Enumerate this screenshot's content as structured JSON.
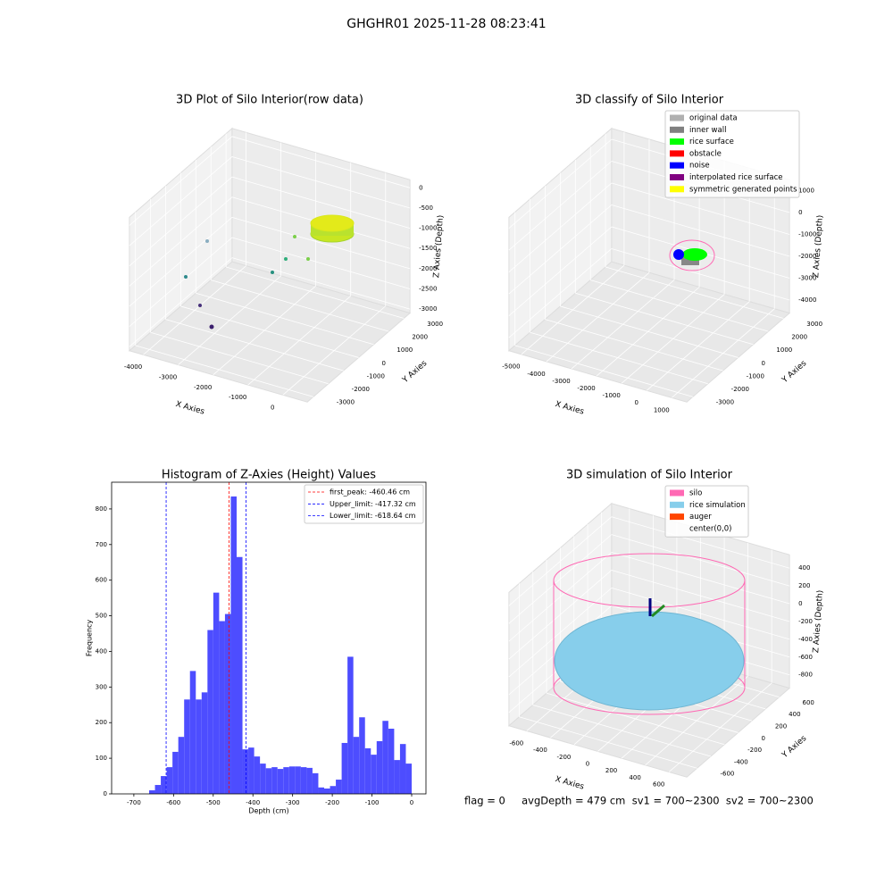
{
  "suptitle": "GHGHR01 2025-11-28 08:23:41",
  "chart_data": [
    {
      "type": "scatter3d",
      "title": "3D Plot of Silo Interior(row data)",
      "x_label": "X Axies",
      "y_label": "Y Axies",
      "z_label": "Z Axies (Depth)",
      "xlim": [
        -4400,
        700
      ],
      "ylim": [
        -3400,
        3400
      ],
      "zlim": [
        -3100,
        200
      ],
      "xticks": [
        -4000,
        -3000,
        -2000,
        -1000,
        0
      ],
      "yticks": [
        -3000,
        -2000,
        -1000,
        0,
        1000,
        2000,
        3000
      ],
      "zticks": [
        -3000,
        -2500,
        -2000,
        -1500,
        -1000,
        -500,
        0
      ],
      "grid": true
    },
    {
      "type": "scatter3d",
      "title": "3D classify of Silo Interior",
      "x_label": "X Axies",
      "y_label": "Y Axies",
      "z_label": "Z Axies (Depth)",
      "xlim": [
        -5500,
        1600
      ],
      "ylim": [
        -3400,
        3400
      ],
      "zlim": [
        -4600,
        1500
      ],
      "xticks": [
        -5000,
        -4000,
        -3000,
        -2000,
        -1000,
        0,
        1000
      ],
      "yticks": [
        -3000,
        -2000,
        -1000,
        0,
        1000,
        2000,
        3000
      ],
      "zticks": [
        -4000,
        -3000,
        -2000,
        -1000,
        0,
        1000
      ],
      "grid": true,
      "legend": [
        {
          "label": "original data",
          "color": "#b0b0b0"
        },
        {
          "label": "inner wall",
          "color": "#808080"
        },
        {
          "label": "rice surface",
          "color": "#00ff00"
        },
        {
          "label": "obstacle",
          "color": "#ff0000"
        },
        {
          "label": "noise",
          "color": "#0000ff"
        },
        {
          "label": "interpolated rice surface",
          "color": "#800080"
        },
        {
          "label": "symmetric generated points",
          "color": "#ffff00"
        }
      ]
    },
    {
      "type": "histogram",
      "title": "Histogram of Z-Axies (Height) Values",
      "x_label": "Depth (cm)",
      "y_label": "Frequency",
      "color": "#4d4dff",
      "xlim": [
        -756,
        36
      ],
      "ylim": [
        0,
        875
      ],
      "xticks": [
        -700,
        -600,
        -500,
        -400,
        -300,
        -200,
        -100,
        0
      ],
      "yticks": [
        0,
        100,
        200,
        300,
        400,
        500,
        600,
        700,
        800
      ],
      "bins": [
        -661.5,
        -646.8,
        -632.1,
        -617.4,
        -602.7,
        -588,
        -573.3,
        -558.6,
        -543.9,
        -529.2,
        -514.5,
        -499.8,
        -485.1,
        -470.4,
        -455.7,
        -441,
        -426.3,
        -411.6,
        -396.9,
        -382.2,
        -367.5,
        -352.8,
        -338.1,
        -323.4,
        -308.7,
        -294,
        -279.3,
        -264.6,
        -249.9,
        -235.2,
        -220.5,
        -205.8,
        -191.1,
        -176.4,
        -161.7,
        -147,
        -132.3,
        -117.6,
        -102.9,
        -88.2,
        -73.5,
        -58.8,
        -44.1,
        -29.4,
        -14.7,
        0
      ],
      "values": [
        10,
        25,
        50,
        75,
        118,
        160,
        265,
        345,
        265,
        285,
        460,
        565,
        485,
        505,
        835,
        665,
        125,
        130,
        105,
        85,
        72,
        75,
        70,
        75,
        77,
        77,
        75,
        73,
        58,
        18,
        15,
        22,
        40,
        143,
        385,
        160,
        215,
        128,
        110,
        148,
        205,
        183,
        95,
        140,
        85
      ],
      "vlines": [
        {
          "label": "first_peak: -460.46 cm",
          "value": -460.46,
          "color": "#ff0000"
        },
        {
          "label": "Upper_limit: -417.32 cm",
          "value": -417.32,
          "color": "#0000ff"
        },
        {
          "label": "Lower_limit: -618.64 cm",
          "value": -618.64,
          "color": "#0000ff"
        }
      ]
    },
    {
      "type": "surface3d",
      "title": "3D simulation of Silo Interior",
      "x_label": "X Axies",
      "y_label": "Y Axies",
      "z_label": "Z Axies (Depth)",
      "xlim": [
        -750,
        750
      ],
      "ylim": [
        -750,
        750
      ],
      "zlim": [
        -950,
        550
      ],
      "xticks": [
        -600,
        -400,
        -200,
        0,
        200,
        400,
        600
      ],
      "yticks": [
        -600,
        -400,
        -200,
        0,
        200,
        400,
        600
      ],
      "zticks": [
        -800,
        -600,
        -400,
        -200,
        0,
        200,
        400
      ],
      "grid": true,
      "legend": [
        {
          "label": "silo",
          "color": "#ff69b4"
        },
        {
          "label": "rice simulation",
          "color": "#87ceeb"
        },
        {
          "label": "auger",
          "color": "#ff4500"
        },
        {
          "label": "center(0,0)"
        }
      ]
    }
  ],
  "footer": "flag = 0     avgDepth = 479 cm  sv1 = 700~2300  sv2 = 700~2300"
}
